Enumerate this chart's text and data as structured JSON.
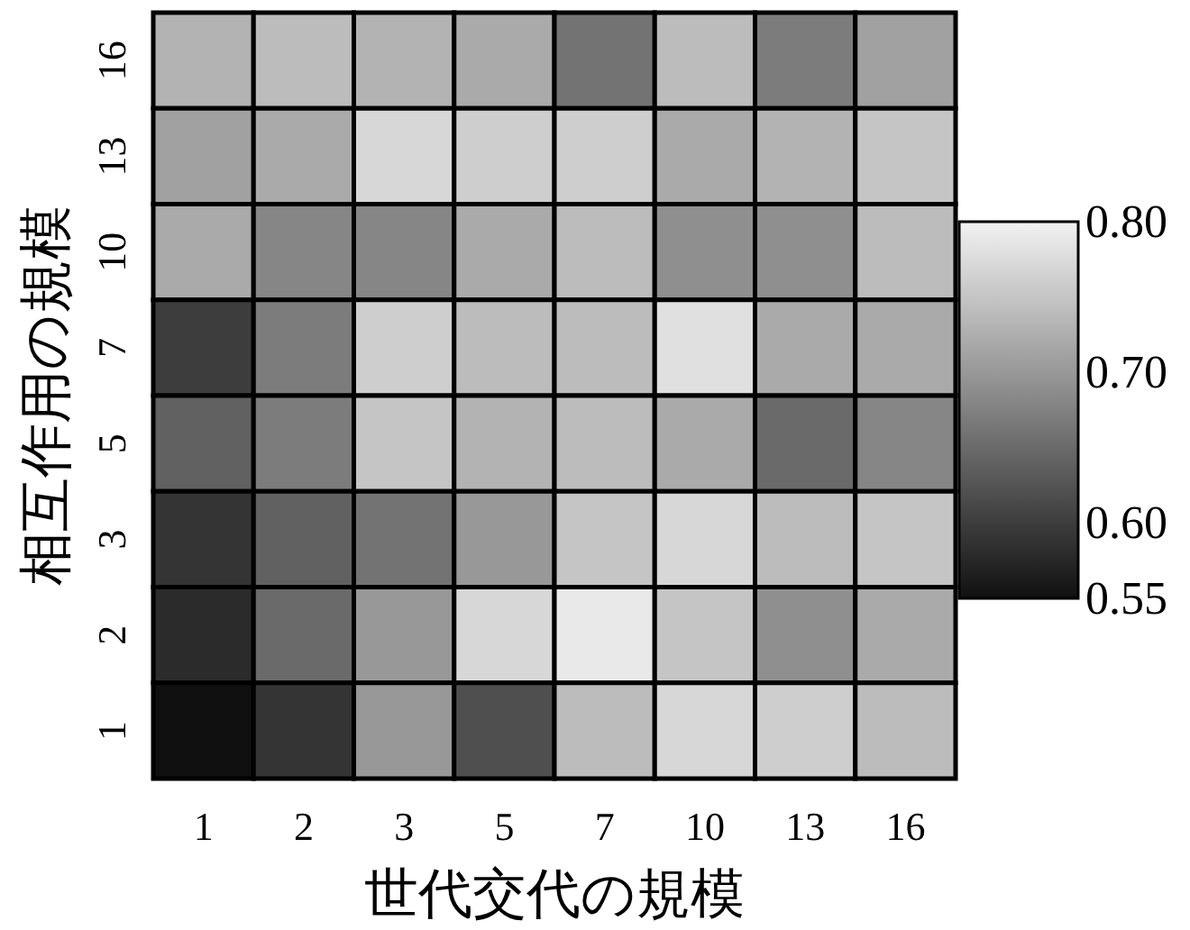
{
  "chart_data": {
    "type": "heatmap",
    "xlabel": "世代交代の規模",
    "ylabel": "相互作用の規模",
    "categories": [
      "1",
      "2",
      "3",
      "5",
      "7",
      "10",
      "13",
      "16"
    ],
    "y_categories": [
      "16",
      "13",
      "10",
      "7",
      "5",
      "3",
      "2",
      "1"
    ],
    "cells": [
      [
        0.73,
        0.74,
        0.73,
        0.72,
        0.66,
        0.74,
        0.67,
        0.71
      ],
      [
        0.71,
        0.72,
        0.77,
        0.76,
        0.76,
        0.72,
        0.73,
        0.75
      ],
      [
        0.72,
        0.68,
        0.68,
        0.72,
        0.74,
        0.69,
        0.69,
        0.74
      ],
      [
        0.6,
        0.67,
        0.76,
        0.74,
        0.74,
        0.78,
        0.72,
        0.72
      ],
      [
        0.64,
        0.67,
        0.75,
        0.73,
        0.74,
        0.72,
        0.65,
        0.68
      ],
      [
        0.59,
        0.64,
        0.66,
        0.7,
        0.75,
        0.77,
        0.74,
        0.75
      ],
      [
        0.58,
        0.65,
        0.7,
        0.77,
        0.79,
        0.75,
        0.69,
        0.72
      ],
      [
        0.55,
        0.59,
        0.7,
        0.62,
        0.74,
        0.77,
        0.76,
        0.74
      ]
    ],
    "clim": [
      0.55,
      0.8
    ],
    "cticks": [
      {
        "value": 0.55,
        "label": "0.55"
      },
      {
        "value": 0.6,
        "label": "0.60"
      },
      {
        "value": 0.7,
        "label": "0.70"
      },
      {
        "value": 0.8,
        "label": "0.80"
      }
    ]
  }
}
